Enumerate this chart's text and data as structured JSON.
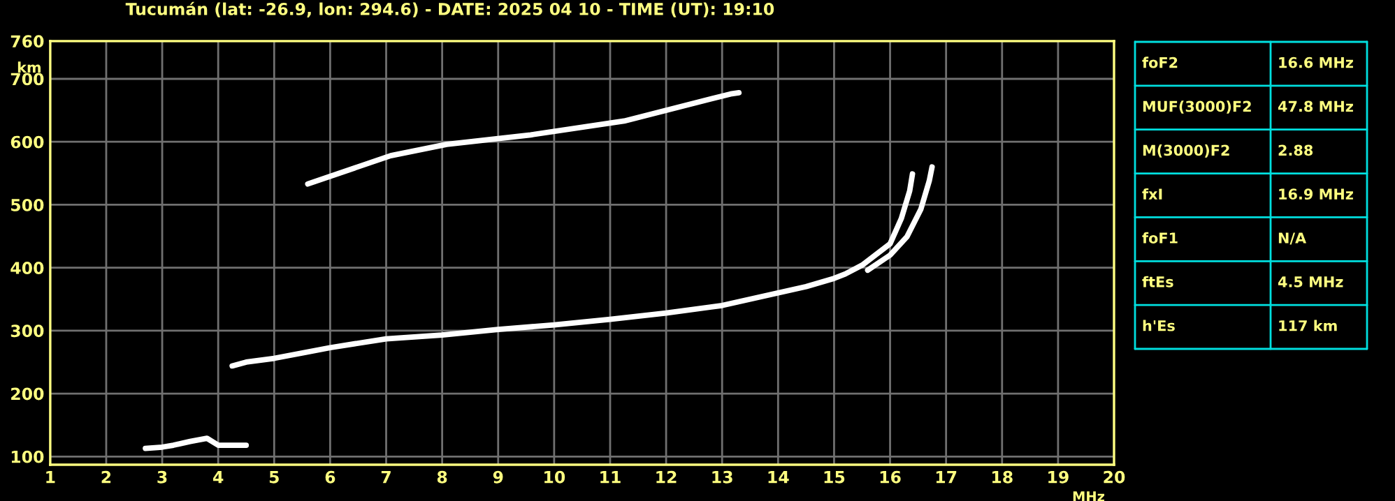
{
  "chart_data": {
    "type": "line",
    "title": "Tucumán (lat: -26.9, lon: 294.6) - DATE: 2025 04 10 - TIME (UT): 19:10",
    "xlabel": "MHz",
    "ylabel": "km",
    "xlim": [
      1,
      20
    ],
    "ylim": [
      87,
      760
    ],
    "xticks": [
      1,
      2,
      3,
      4,
      5,
      6,
      7,
      8,
      9,
      10,
      11,
      12,
      13,
      14,
      15,
      16,
      17,
      18,
      19,
      20
    ],
    "yticks": [
      100,
      200,
      300,
      400,
      500,
      600,
      700,
      760
    ],
    "grid": true,
    "legend": false,
    "marker": "none",
    "line_style": "solid",
    "series": [
      {
        "color": "#ffffff",
        "x": [
          4.25,
          4.5,
          5,
          6,
          7,
          8,
          9,
          10,
          11,
          12,
          13,
          14,
          14.5,
          15,
          15.2,
          15.5,
          16,
          16.2,
          16.35,
          16.4
        ],
        "values": [
          244,
          250,
          256,
          273,
          287,
          293,
          302,
          309,
          318,
          328,
          340,
          360,
          370,
          383,
          390,
          404,
          438,
          478,
          522,
          549
        ]
      },
      {
        "color": "#ffffff",
        "x": [
          15.6,
          16,
          16.3,
          16.55,
          16.7,
          16.75
        ],
        "values": [
          396,
          420,
          449,
          493,
          538,
          560
        ]
      },
      {
        "color": "#ffffff",
        "x": [
          2.7,
          3.0,
          3.2,
          3.5,
          3.8,
          4.0,
          4.5
        ],
        "values": [
          113,
          115,
          118,
          124,
          129,
          118,
          118
        ]
      },
      {
        "color": "#ffffff",
        "x": [
          5.6,
          7.08,
          8.08,
          9.58,
          11.25,
          13.15,
          13.3
        ],
        "values": [
          533,
          578,
          596,
          611,
          633,
          676,
          678
        ]
      }
    ],
    "annotations": [
      "foF2",
      "16.6 MHz",
      "MUF(3000)F2",
      "47.8 MHz",
      "M(3000)F2",
      "2.88",
      "fxI",
      "16.9 MHz",
      "foF1",
      "N/A",
      "ftEs",
      "4.5 MHz",
      "h'Es",
      "117 km"
    ]
  }
}
